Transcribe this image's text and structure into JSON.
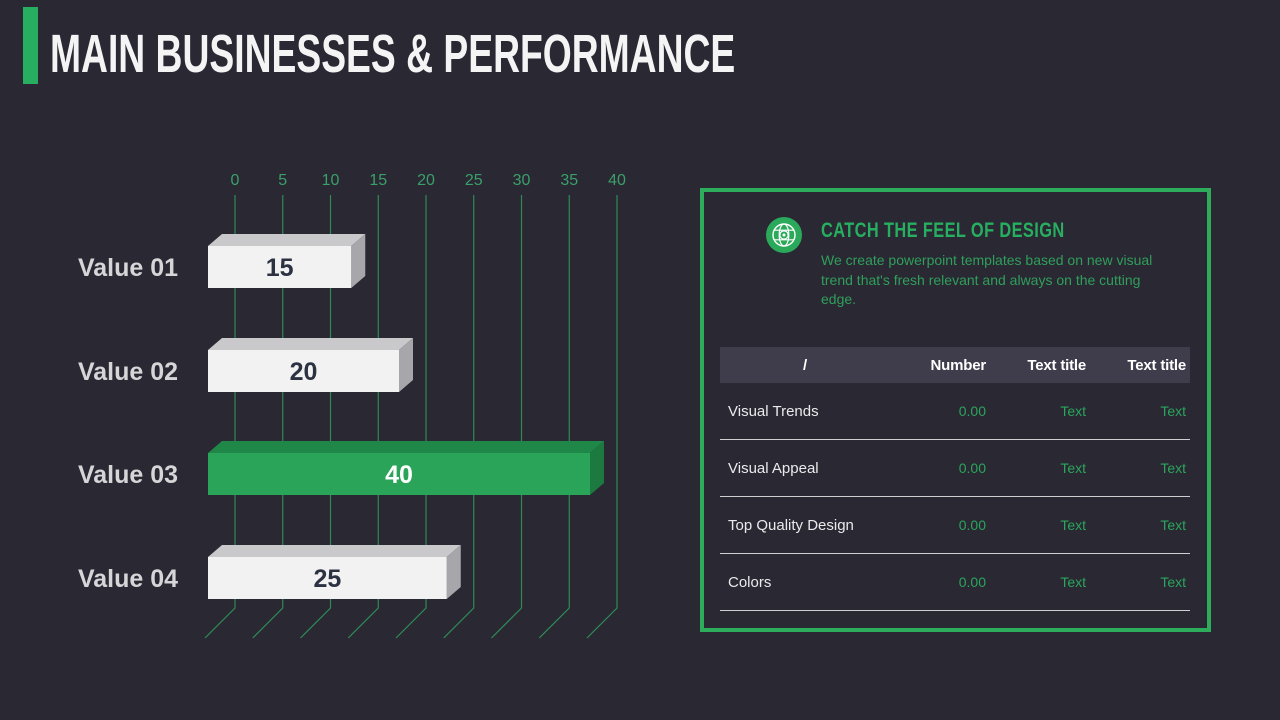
{
  "slide": {
    "title": "MAIN BUSINESSES & PERFORMANCE",
    "accent_color": "#27ae60",
    "background_color": "#2a2833"
  },
  "chart_data": {
    "type": "bar",
    "orientation": "horizontal",
    "title": "",
    "categories": [
      "Value 01",
      "Value 02",
      "Value 03",
      "Value 04"
    ],
    "values": [
      15,
      20,
      40,
      25
    ],
    "highlight_index": 2,
    "axis_ticks": [
      0,
      5,
      10,
      15,
      20,
      25,
      30,
      35,
      40
    ],
    "xlim": [
      0,
      40
    ],
    "grid": true,
    "legend": false,
    "colors": {
      "bar_front": "#f2f2f3",
      "bar_top": "#c9c9cc",
      "bar_side": "#a7a7ab",
      "highlight_front": "#2aa458",
      "highlight_top": "#1f8747",
      "highlight_side": "#1c7a40",
      "grid_line": "#2e8b56",
      "tick_label": "#3aa06a",
      "value_label_dark": "#2d3242",
      "value_label_light": "#ffffff",
      "category_label": "#d6d6d9"
    }
  },
  "panel": {
    "border_color": "#2dad5c",
    "icon": "globe-gear-icon",
    "icon_color": "#2aa95a",
    "heading": "CATCH THE FEEL OF DESIGN",
    "description": "We create powerpoint templates based on new visual trend that's fresh relevant and always on the cutting edge.",
    "table": {
      "headers": [
        "/",
        "Number",
        "Text title",
        "Text title"
      ],
      "rows": [
        [
          "Visual Trends",
          "0.00",
          "Text",
          "Text"
        ],
        [
          "Visual Appeal",
          "0.00",
          "Text",
          "Text"
        ],
        [
          "Top Quality Design",
          "0.00",
          "Text",
          "Text"
        ],
        [
          "Colors",
          "0.00",
          "Text",
          "Text"
        ]
      ]
    }
  }
}
